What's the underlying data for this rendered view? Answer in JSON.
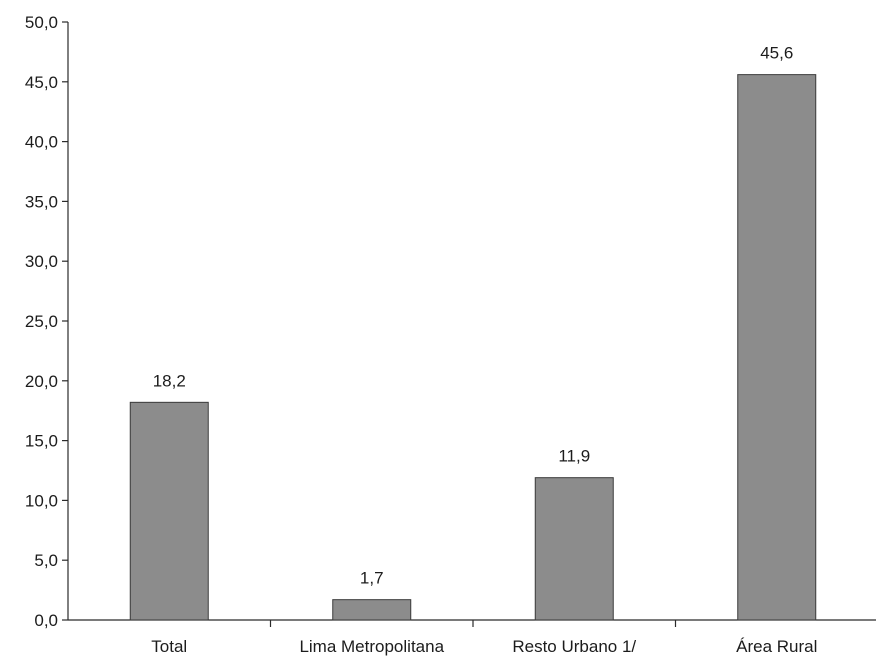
{
  "chart_data": {
    "type": "bar",
    "categories": [
      "Total",
      "Lima Metropolitana",
      "Resto Urbano 1/",
      "Área Rural"
    ],
    "values": [
      18.2,
      1.7,
      11.9,
      45.6
    ],
    "value_labels": [
      "18,2",
      "1,7",
      "11,9",
      "45,6"
    ],
    "ylim": [
      0,
      50
    ],
    "yticks": [
      0,
      5,
      10,
      15,
      20,
      25,
      30,
      35,
      40,
      45,
      50
    ],
    "ytick_labels": [
      "0,0",
      "5,0",
      "10,0",
      "15,0",
      "20,0",
      "25,0",
      "30,0",
      "35,0",
      "40,0",
      "45,0",
      "50,0"
    ],
    "grid": false,
    "legend": "none",
    "bar_color": "#8c8c8c"
  }
}
